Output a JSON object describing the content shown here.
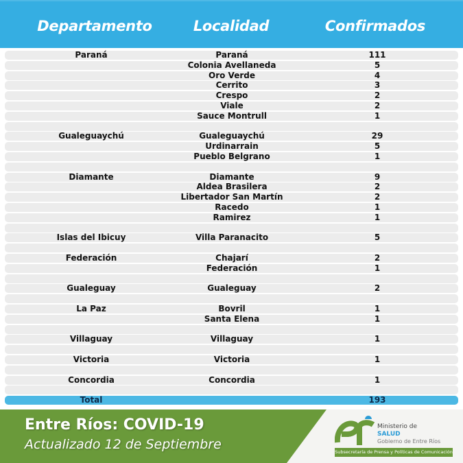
{
  "header": {
    "columns": [
      "Departamento",
      "Localidad",
      "Confirmados"
    ]
  },
  "table": {
    "rows": [
      [
        "Paraná",
        "Paraná",
        "111"
      ],
      [
        "",
        "Colonia Avellaneda",
        "5"
      ],
      [
        "",
        "Oro Verde",
        "4"
      ],
      [
        "",
        "Cerrito",
        "3"
      ],
      [
        "",
        "Crespo",
        "2"
      ],
      [
        "",
        "Viale",
        "2"
      ],
      [
        "",
        "Sauce Montrull",
        "1"
      ],
      [
        "",
        "",
        ""
      ],
      [
        "Gualeguaychú",
        "Gualeguaychú",
        "29"
      ],
      [
        "",
        "Urdinarrain",
        "5"
      ],
      [
        "",
        "Pueblo Belgrano",
        "1"
      ],
      [
        "",
        "",
        ""
      ],
      [
        "Diamante",
        "Diamante",
        "9"
      ],
      [
        "",
        "Aldea Brasilera",
        "2"
      ],
      [
        "",
        "Libertador San Martín",
        "2"
      ],
      [
        "",
        "Racedo",
        "1"
      ],
      [
        "",
        "Ramirez",
        "1"
      ],
      [
        "",
        "",
        ""
      ],
      [
        "Islas del Ibicuy",
        "Villa Paranacito",
        "5"
      ],
      [
        "",
        "",
        ""
      ],
      [
        "Federación",
        "Chajarí",
        "2"
      ],
      [
        "",
        "Federación",
        "1"
      ],
      [
        "",
        "",
        ""
      ],
      [
        "Gualeguay",
        "Gualeguay",
        "2"
      ],
      [
        "",
        "",
        ""
      ],
      [
        "La Paz",
        "Bovril",
        "1"
      ],
      [
        "",
        "Santa Elena",
        "1"
      ],
      [
        "",
        "",
        ""
      ],
      [
        "Villaguay",
        "Villaguay",
        "1"
      ],
      [
        "",
        "",
        ""
      ],
      [
        "Victoria",
        "Victoria",
        "1"
      ],
      [
        "",
        "",
        ""
      ],
      [
        "Concordia",
        "Concordia",
        "1"
      ],
      [
        "",
        "",
        ""
      ]
    ],
    "total": {
      "label": "Total",
      "value": "193"
    }
  },
  "footer": {
    "title": "Entre Ríos: COVID-19",
    "subtitle": "Actualizado 12 de Septiembre",
    "logo": {
      "line1": "Ministerio de",
      "line2": "SALUD",
      "line3": "Gobierno de Entre Ríos",
      "band": "Subsecretaría de Prensa y Políticas de Comunicación"
    }
  },
  "colors": {
    "header_blue": "#35aee2",
    "total_blue": "#4cb8e4",
    "footer_green": "#6a9a3a",
    "row_grey": "#ececec"
  }
}
